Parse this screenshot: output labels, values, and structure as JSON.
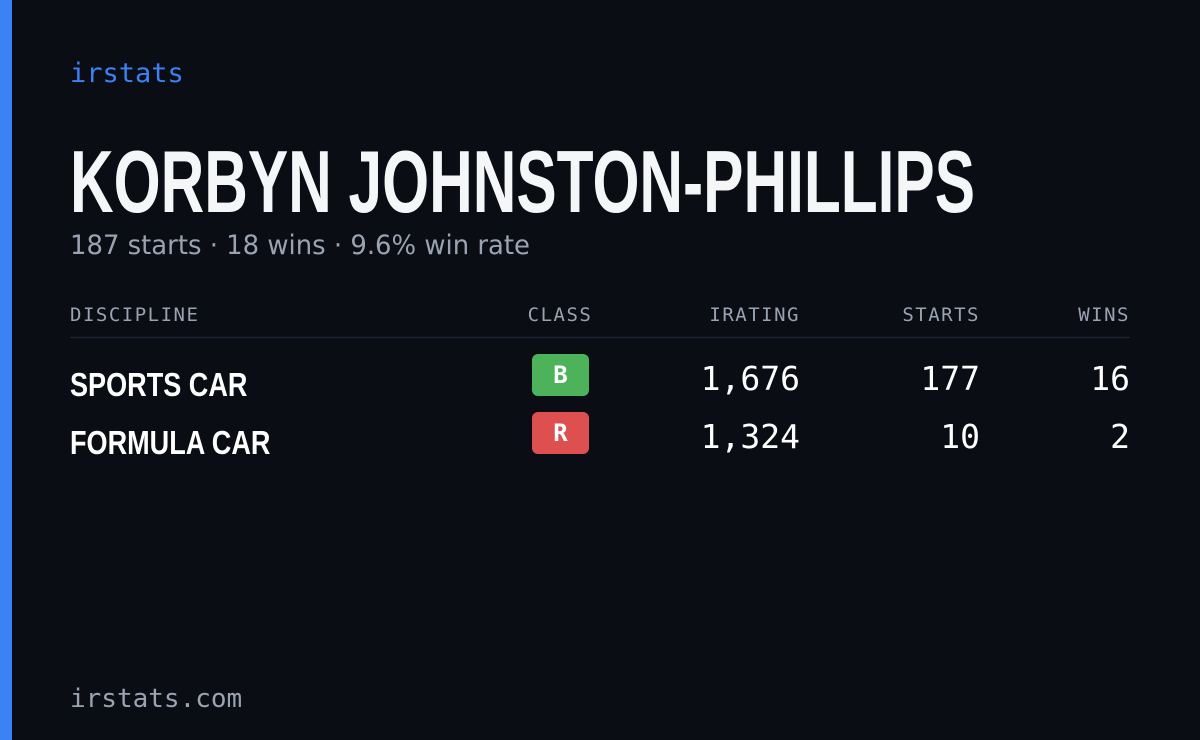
{
  "brand": "irstats",
  "driver": {
    "name": "KORBYN JOHNSTON-PHILLIPS",
    "summary": "187 starts · 18 wins · 9.6% win rate"
  },
  "table": {
    "headers": [
      "DISCIPLINE",
      "CLASS",
      "IRATING",
      "STARTS",
      "WINS"
    ],
    "rows": [
      {
        "discipline": "SPORTS CAR",
        "class": "B",
        "class_color": "#4cb35a",
        "irating": "1,676",
        "starts": 177,
        "wins": 16
      },
      {
        "discipline": "FORMULA CAR",
        "class": "R",
        "class_color": "#de5050",
        "irating": "1,324",
        "starts": 10,
        "wins": 2
      }
    ]
  },
  "footer": "irstats.com"
}
